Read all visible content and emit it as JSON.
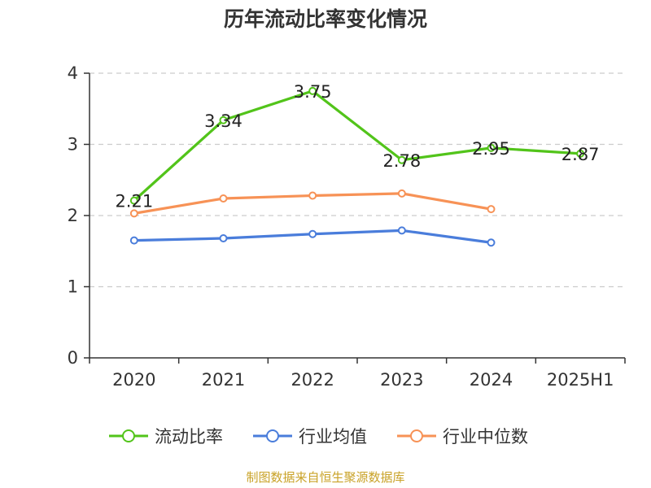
{
  "title": "历年流动比率变化情况",
  "source": "制图数据来自恒生聚源数据库",
  "colors": {
    "current_ratio": "#52c41a",
    "industry_avg": "#4a7ddb",
    "industry_median": "#f79256",
    "grid": "#cccccc",
    "axis": "#333333"
  },
  "legend": [
    {
      "name": "流动比率",
      "color": "#52c41a"
    },
    {
      "name": "行业均值",
      "color": "#4a7ddb"
    },
    {
      "name": "行业中位数",
      "color": "#f79256"
    }
  ],
  "chart_data": {
    "type": "line",
    "title": "历年流动比率变化情况",
    "categories": [
      "2020",
      "2021",
      "2022",
      "2023",
      "2024",
      "2025H1"
    ],
    "ylim": [
      0,
      4
    ],
    "yticks": [
      "0",
      "1",
      "2",
      "3",
      "4"
    ],
    "grid": true,
    "legend_position": "bottom",
    "series": [
      {
        "name": "流动比率",
        "values": [
          2.21,
          3.34,
          3.75,
          2.78,
          2.95,
          2.87
        ],
        "labels": [
          "2.21",
          "3.34",
          "3.75",
          "2.78",
          "2.95",
          "2.87"
        ]
      },
      {
        "name": "行业均值",
        "values": [
          1.65,
          1.68,
          1.74,
          1.79,
          1.62,
          null
        ]
      },
      {
        "name": "行业中位数",
        "values": [
          2.03,
          2.24,
          2.28,
          2.31,
          2.09,
          null
        ]
      }
    ]
  }
}
